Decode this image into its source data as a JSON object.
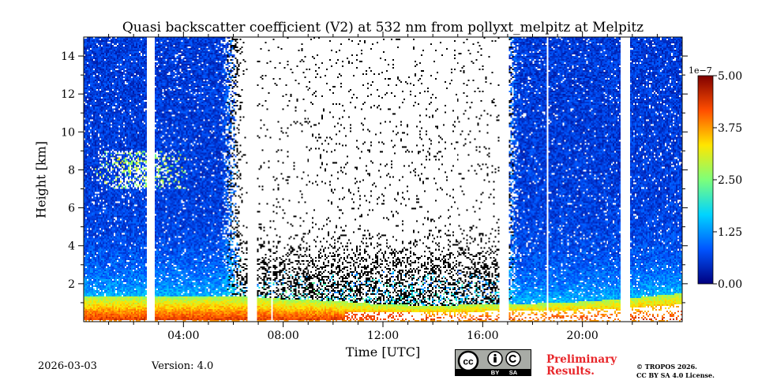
{
  "chart_data": {
    "type": "heatmap",
    "title": "Quasi backscatter coefficient (V2) at 532 nm from pollyxt_melpitz at Melpitz",
    "xlabel": "Time [UTC]",
    "ylabel": "Height [km]",
    "x_range_hours": [
      0,
      24
    ],
    "y_range_km": [
      0,
      15
    ],
    "x_ticks": [
      {
        "value": 4,
        "label": "04:00"
      },
      {
        "value": 8,
        "label": "08:00"
      },
      {
        "value": 12,
        "label": "12:00"
      },
      {
        "value": 16,
        "label": "16:00"
      },
      {
        "value": 20,
        "label": "20:00"
      }
    ],
    "y_ticks": [
      {
        "value": 2,
        "label": "2"
      },
      {
        "value": 4,
        "label": "4"
      },
      {
        "value": 6,
        "label": "6"
      },
      {
        "value": 8,
        "label": "8"
      },
      {
        "value": 10,
        "label": "10"
      },
      {
        "value": 12,
        "label": "12"
      },
      {
        "value": 14,
        "label": "14"
      }
    ],
    "colorbar": {
      "exponent_label": "1e−7",
      "min": 0.0,
      "max": 5.0,
      "ticks": [
        {
          "value": 0.0,
          "label": "0.00"
        },
        {
          "value": 1.25,
          "label": "1.25"
        },
        {
          "value": 2.5,
          "label": "2.50"
        },
        {
          "value": 3.75,
          "label": "3.75"
        },
        {
          "value": 5.0,
          "label": "5.00"
        }
      ],
      "colormap": [
        "#00007f",
        "#0055ff",
        "#00d4ff",
        "#7dff7a",
        "#ffe600",
        "#ff4e00",
        "#7f0000"
      ]
    },
    "data_gaps_hours": [
      [
        2.5,
        2.85
      ],
      [
        6.6,
        6.95
      ],
      [
        16.7,
        17.05
      ],
      [
        21.55,
        21.9
      ]
    ],
    "thin_gaps_hours": [
      7.55,
      18.6
    ],
    "daytime_noise_hours": [
      5.5,
      17.5
    ],
    "boundary_layer_top_km": [
      {
        "t": 0,
        "h": 1.3
      },
      {
        "t": 4,
        "h": 1.3
      },
      {
        "t": 6,
        "h": 1.35
      },
      {
        "t": 8,
        "h": 1.2
      },
      {
        "t": 10,
        "h": 1.1
      },
      {
        "t": 12,
        "h": 0.9
      },
      {
        "t": 14,
        "h": 0.85
      },
      {
        "t": 16,
        "h": 0.9
      },
      {
        "t": 18,
        "h": 0.95
      },
      {
        "t": 20,
        "h": 1.05
      },
      {
        "t": 22,
        "h": 1.25
      },
      {
        "t": 24,
        "h": 1.5
      }
    ],
    "cloud_layer": {
      "time_hours": [
        0.2,
        4.3
      ],
      "height_km": [
        7.0,
        9.0
      ]
    }
  },
  "footer": {
    "date": "2026-03-03",
    "version": "Version: 4.0",
    "preliminary_line1": "Preliminary",
    "preliminary_line2": "Results.",
    "copyright_line1": "© TROPOS 2026.",
    "copyright_line2": "CC BY SA 4.0 License.",
    "cc_badge": {
      "cc": "cc",
      "by": "BY",
      "sa": "SA"
    }
  },
  "colors": {
    "alert": "#e8262a",
    "badge_bg": "#a8aba6"
  }
}
